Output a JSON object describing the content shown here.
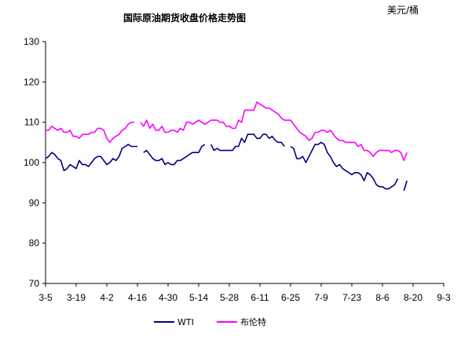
{
  "chart_data": {
    "type": "line",
    "title": "国际原油期货收盘价格走势图",
    "unit_label": "美元/桶",
    "ylim": [
      70,
      130
    ],
    "yticks": [
      70,
      80,
      90,
      100,
      110,
      120,
      130
    ],
    "grid": false,
    "legend_position": "bottom",
    "x_tick_labels": [
      "3-5",
      "3-19",
      "4-2",
      "4-16",
      "4-30",
      "5-14",
      "5-28",
      "6-11",
      "6-25",
      "7-9",
      "7-23",
      "8-6",
      "8-20",
      "9-3"
    ],
    "x_tick_positions": [
      0,
      10,
      20,
      30,
      40,
      50,
      60,
      70,
      80,
      90,
      100,
      110,
      120,
      130
    ],
    "series": [
      {
        "name": "WTI",
        "color": "#000080",
        "points": [
          [
            0,
            101
          ],
          [
            1,
            101.5
          ],
          [
            2,
            102.5
          ],
          [
            3,
            102
          ],
          [
            4,
            101
          ],
          [
            5,
            100.5
          ],
          [
            6,
            98
          ],
          [
            7,
            98.5
          ],
          [
            8,
            99.5
          ],
          [
            9,
            99
          ],
          [
            10,
            98.5
          ],
          [
            11,
            100.5
          ],
          [
            12,
            99.5
          ],
          [
            13,
            99.5
          ],
          [
            14,
            99
          ],
          [
            15,
            100
          ],
          [
            16,
            101
          ],
          [
            17,
            101.5
          ],
          [
            18,
            101.5
          ],
          [
            19,
            100.5
          ],
          [
            20,
            99.5
          ],
          [
            21,
            100
          ],
          [
            22,
            101
          ],
          [
            23,
            100.5
          ],
          [
            24,
            101.5
          ],
          [
            25,
            103.5
          ],
          [
            26,
            104
          ],
          [
            27,
            104.5
          ],
          [
            28,
            104
          ],
          [
            29,
            104
          ],
          [
            30,
            104
          ],
          [
            31,
            null
          ],
          [
            32,
            102.5
          ],
          [
            33,
            103
          ],
          [
            34,
            102
          ],
          [
            35,
            101
          ],
          [
            36,
            100.5
          ],
          [
            37,
            100.5
          ],
          [
            38,
            101
          ],
          [
            39,
            99.5
          ],
          [
            40,
            100
          ],
          [
            41,
            99.5
          ],
          [
            42,
            99.5
          ],
          [
            43,
            100.5
          ],
          [
            44,
            100.5
          ],
          [
            45,
            101
          ],
          [
            46,
            101.5
          ],
          [
            47,
            102
          ],
          [
            48,
            102.5
          ],
          [
            49,
            102.5
          ],
          [
            50,
            102.5
          ],
          [
            51,
            104
          ],
          [
            52,
            104.5
          ],
          [
            53,
            null
          ],
          [
            54,
            104.5
          ],
          [
            55,
            103
          ],
          [
            56,
            103.5
          ],
          [
            57,
            103
          ],
          [
            58,
            103
          ],
          [
            59,
            103
          ],
          [
            60,
            103
          ],
          [
            61,
            103
          ],
          [
            62,
            104
          ],
          [
            63,
            104
          ],
          [
            64,
            106
          ],
          [
            65,
            105
          ],
          [
            66,
            107
          ],
          [
            67,
            107
          ],
          [
            68,
            107
          ],
          [
            69,
            106
          ],
          [
            70,
            106
          ],
          [
            71,
            107
          ],
          [
            72,
            107
          ],
          [
            73,
            106
          ],
          [
            74,
            106.5
          ],
          [
            75,
            105.5
          ],
          [
            76,
            105
          ],
          [
            77,
            105
          ],
          [
            78,
            104
          ],
          [
            79,
            null
          ],
          [
            80,
            104
          ],
          [
            81,
            103.5
          ],
          [
            82,
            101
          ],
          [
            83,
            101
          ],
          [
            84,
            101.5
          ],
          [
            85,
            100
          ],
          [
            86,
            101.5
          ],
          [
            87,
            103
          ],
          [
            88,
            104.5
          ],
          [
            89,
            104.5
          ],
          [
            90,
            105
          ],
          [
            91,
            104.5
          ],
          [
            92,
            102.5
          ],
          [
            93,
            101.5
          ],
          [
            94,
            100
          ],
          [
            95,
            99
          ],
          [
            96,
            99.5
          ],
          [
            97,
            98.5
          ],
          [
            98,
            98
          ],
          [
            99,
            97.5
          ],
          [
            100,
            97
          ],
          [
            101,
            97.5
          ],
          [
            102,
            97.5
          ],
          [
            103,
            97
          ],
          [
            104,
            95.5
          ],
          [
            105,
            97.5
          ],
          [
            106,
            97
          ],
          [
            107,
            96
          ],
          [
            108,
            94.5
          ],
          [
            109,
            94
          ],
          [
            110,
            94
          ],
          [
            111,
            93.5
          ],
          [
            112,
            93.5
          ],
          [
            113,
            94
          ],
          [
            114,
            94.5
          ],
          [
            115,
            96
          ],
          [
            116,
            null
          ],
          [
            117,
            93
          ],
          [
            118,
            95.5
          ]
        ]
      },
      {
        "name": "布伦特",
        "color": "#FF00FF",
        "points": [
          [
            0,
            108
          ],
          [
            1,
            108
          ],
          [
            2,
            109
          ],
          [
            3,
            108.5
          ],
          [
            4,
            108
          ],
          [
            5,
            108.5
          ],
          [
            6,
            107.5
          ],
          [
            7,
            107.5
          ],
          [
            8,
            108
          ],
          [
            9,
            106.5
          ],
          [
            10,
            106.5
          ],
          [
            11,
            106
          ],
          [
            12,
            107
          ],
          [
            13,
            107
          ],
          [
            14,
            107
          ],
          [
            15,
            107.5
          ],
          [
            16,
            107.5
          ],
          [
            17,
            108.5
          ],
          [
            18,
            108.5
          ],
          [
            19,
            108
          ],
          [
            20,
            106
          ],
          [
            21,
            105
          ],
          [
            22,
            106
          ],
          [
            23,
            106.5
          ],
          [
            24,
            107
          ],
          [
            25,
            108
          ],
          [
            26,
            108.5
          ],
          [
            27,
            109.5
          ],
          [
            28,
            110
          ],
          [
            29,
            110
          ],
          [
            30,
            null
          ],
          [
            31,
            110
          ],
          [
            32,
            109
          ],
          [
            33,
            110.5
          ],
          [
            34,
            108.5
          ],
          [
            35,
            109.5
          ],
          [
            36,
            108
          ],
          [
            37,
            108
          ],
          [
            38,
            109
          ],
          [
            39,
            107.5
          ],
          [
            40,
            107.5
          ],
          [
            41,
            108
          ],
          [
            42,
            108
          ],
          [
            43,
            107.5
          ],
          [
            44,
            108.5
          ],
          [
            45,
            108
          ],
          [
            46,
            110
          ],
          [
            47,
            110
          ],
          [
            48,
            109.5
          ],
          [
            49,
            110
          ],
          [
            50,
            110.5
          ],
          [
            51,
            110
          ],
          [
            52,
            109.5
          ],
          [
            53,
            110
          ],
          [
            54,
            110.5
          ],
          [
            55,
            110.5
          ],
          [
            56,
            110.5
          ],
          [
            57,
            110
          ],
          [
            58,
            110
          ],
          [
            59,
            109
          ],
          [
            60,
            109
          ],
          [
            61,
            108.5
          ],
          [
            62,
            108.5
          ],
          [
            63,
            110.5
          ],
          [
            64,
            110
          ],
          [
            65,
            113
          ],
          [
            66,
            113
          ],
          [
            67,
            113
          ],
          [
            68,
            113
          ],
          [
            69,
            115
          ],
          [
            70,
            114.5
          ],
          [
            71,
            114
          ],
          [
            72,
            113.5
          ],
          [
            73,
            113.5
          ],
          [
            74,
            113
          ],
          [
            75,
            112.5
          ],
          [
            76,
            112
          ],
          [
            77,
            111
          ],
          [
            78,
            110.5
          ],
          [
            79,
            110.5
          ],
          [
            80,
            110.5
          ],
          [
            81,
            109.5
          ],
          [
            82,
            108.5
          ],
          [
            83,
            107.5
          ],
          [
            84,
            107
          ],
          [
            85,
            106.5
          ],
          [
            86,
            105.5
          ],
          [
            87,
            106
          ],
          [
            88,
            107.5
          ],
          [
            89,
            107.5
          ],
          [
            90,
            108
          ],
          [
            91,
            108
          ],
          [
            92,
            107.5
          ],
          [
            93,
            108
          ],
          [
            94,
            107
          ],
          [
            95,
            106
          ],
          [
            96,
            105.5
          ],
          [
            97,
            105.5
          ],
          [
            98,
            105
          ],
          [
            99,
            105
          ],
          [
            100,
            105
          ],
          [
            101,
            105
          ],
          [
            102,
            104
          ],
          [
            103,
            104.5
          ],
          [
            104,
            103
          ],
          [
            105,
            103
          ],
          [
            106,
            102.5
          ],
          [
            107,
            101.5
          ],
          [
            108,
            102.5
          ],
          [
            109,
            103
          ],
          [
            110,
            103
          ],
          [
            111,
            103
          ],
          [
            112,
            103
          ],
          [
            113,
            102.5
          ],
          [
            114,
            103
          ],
          [
            115,
            103
          ],
          [
            116,
            102.5
          ],
          [
            117,
            100.5
          ],
          [
            118,
            102.5
          ]
        ]
      }
    ]
  }
}
